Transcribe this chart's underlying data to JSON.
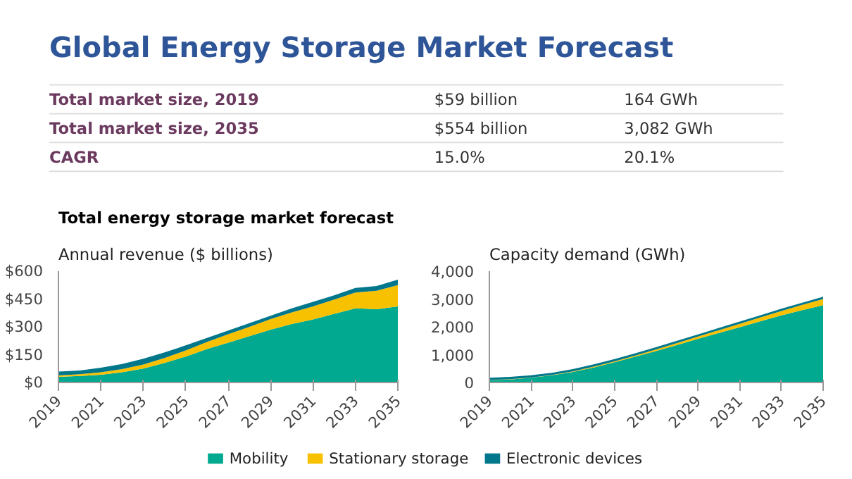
{
  "chart_data": [
    {
      "type": "other",
      "title": "Global Energy Storage Market Forecast",
      "annotations": [
        "Total market size, 2019",
        "$59 billion",
        "164 GWh",
        "Total market size, 2035",
        "$554 billion",
        "3,082 GWh",
        "CAGR",
        "15.0%",
        "20.1%"
      ]
    },
    {
      "type": "area",
      "stacked": true,
      "title": "Total energy storage market forecast",
      "subtitle": "Annual revenue ($ billions)",
      "x": [
        2019,
        2020,
        2021,
        2022,
        2023,
        2024,
        2025,
        2026,
        2027,
        2028,
        2029,
        2030,
        2031,
        2032,
        2033,
        2034,
        2035
      ],
      "series": [
        {
          "name": "Mobility",
          "color": "#00a98f",
          "values": [
            30,
            35,
            42,
            55,
            75,
            105,
            140,
            180,
            215,
            250,
            285,
            315,
            340,
            370,
            400,
            395,
            410
          ]
        },
        {
          "name": "Stationary storage",
          "color": "#f8c100",
          "values": [
            8,
            10,
            13,
            17,
            22,
            27,
            33,
            38,
            45,
            50,
            57,
            63,
            70,
            77,
            85,
            100,
            115
          ]
        },
        {
          "name": "Electronic devices",
          "color": "#00778b",
          "values": [
            21,
            20,
            25,
            28,
            31,
            30,
            27,
            22,
            20,
            20,
            18,
            22,
            25,
            23,
            25,
            25,
            29
          ]
        }
      ],
      "xlim": [
        2019,
        2035
      ],
      "xticks": [
        2019,
        2021,
        2023,
        2025,
        2027,
        2029,
        2031,
        2033,
        2035
      ],
      "ylim": [
        0,
        600
      ],
      "yticks": [
        {
          "value": 0,
          "label": "$0"
        },
        {
          "value": 150,
          "label": "$150"
        },
        {
          "value": 300,
          "label": "$300"
        },
        {
          "value": 450,
          "label": "$450"
        },
        {
          "value": 600,
          "label": "$600"
        }
      ],
      "grid": false,
      "legend": "bottom"
    },
    {
      "type": "area",
      "stacked": true,
      "subtitle": "Capacity demand (GWh)",
      "x": [
        2019,
        2020,
        2021,
        2022,
        2023,
        2024,
        2025,
        2026,
        2027,
        2028,
        2029,
        2030,
        2031,
        2032,
        2033,
        2034,
        2035
      ],
      "series": [
        {
          "color": "#00a98f",
          "values": [
            80,
            110,
            170,
            260,
            380,
            540,
            730,
            930,
            1130,
            1350,
            1570,
            1780,
            1990,
            2200,
            2410,
            2600,
            2780
          ]
        },
        {
          "color": "#f8c100",
          "values": [
            10,
            10,
            10,
            10,
            20,
            30,
            30,
            40,
            60,
            70,
            80,
            100,
            120,
            140,
            160,
            190,
            220
          ]
        },
        {
          "color": "#00778b",
          "values": [
            80,
            80,
            80,
            80,
            80,
            80,
            80,
            80,
            80,
            80,
            80,
            80,
            80,
            80,
            80,
            80,
            80
          ]
        }
      ],
      "xlim": [
        2019,
        2035
      ],
      "xticks": [
        2019,
        2021,
        2023,
        2025,
        2027,
        2029,
        2031,
        2033,
        2035
      ],
      "ylim": [
        0,
        4000
      ],
      "yticks": [
        0,
        {
          "value": 1000,
          "label": "1,000"
        },
        {
          "value": 2000,
          "label": "2,000"
        },
        {
          "value": 3000,
          "label": "3,000"
        },
        {
          "value": 4000,
          "label": "4,000"
        }
      ],
      "grid": false
    }
  ]
}
